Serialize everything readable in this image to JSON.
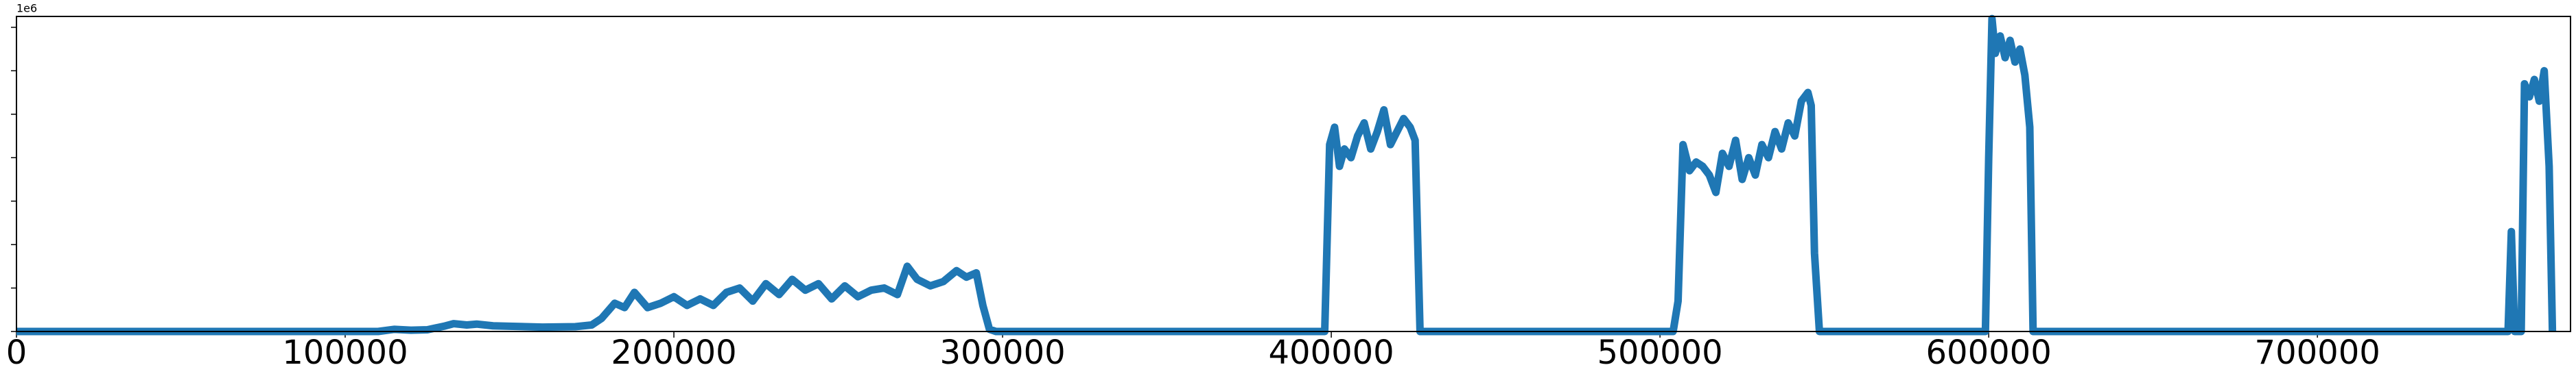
{
  "chart_data": {
    "type": "line",
    "y_offset_label": "1e6",
    "x": [
      0,
      110000,
      115000,
      120000,
      125000,
      130000,
      133000,
      137000,
      140000,
      145000,
      150000,
      160000,
      170000,
      175000,
      178000,
      182000,
      185000,
      188000,
      192000,
      196000,
      200000,
      204000,
      208000,
      212000,
      216000,
      220000,
      224000,
      228000,
      232000,
      236000,
      240000,
      244000,
      248000,
      252000,
      256000,
      260000,
      264000,
      268000,
      271000,
      274000,
      278000,
      282000,
      286000,
      289000,
      292000,
      294000,
      296000,
      298000,
      398000,
      399500,
      401000,
      402500,
      404000,
      406000,
      408000,
      410000,
      412000,
      414000,
      416000,
      418000,
      420000,
      422000,
      424000,
      425500,
      427000,
      504000,
      505500,
      507000,
      509000,
      511000,
      513000,
      515000,
      517000,
      519000,
      521000,
      523000,
      525000,
      527000,
      529000,
      531000,
      533000,
      535000,
      537000,
      539000,
      541000,
      543000,
      545000,
      546000,
      547000,
      548500,
      599000,
      600000,
      601000,
      602000,
      603500,
      605000,
      606500,
      608000,
      609500,
      611000,
      612500,
      613500,
      757000,
      758000,
      759000,
      760000,
      762000,
      763000,
      764500,
      766000,
      767500,
      769000,
      770500,
      771500
    ],
    "series": [
      {
        "color": "#1f77b4",
        "values": [
          0,
          0,
          50000,
          30000,
          40000,
          120000,
          180000,
          150000,
          170000,
          130000,
          120000,
          100000,
          110000,
          150000,
          300000,
          650000,
          550000,
          900000,
          550000,
          650000,
          800000,
          600000,
          750000,
          600000,
          900000,
          1000000,
          700000,
          1100000,
          850000,
          1200000,
          950000,
          1100000,
          750000,
          1050000,
          800000,
          950000,
          1000000,
          850000,
          1500000,
          1200000,
          1050000,
          1150000,
          1400000,
          1250000,
          1350000,
          600000,
          50000,
          0,
          0,
          4300000,
          4700000,
          3800000,
          4200000,
          4000000,
          4500000,
          4800000,
          4200000,
          4600000,
          5100000,
          4300000,
          4600000,
          4900000,
          4700000,
          4400000,
          0,
          0,
          700000,
          4300000,
          3700000,
          3900000,
          3800000,
          3600000,
          3200000,
          4100000,
          3800000,
          4400000,
          3500000,
          4000000,
          3600000,
          4300000,
          4000000,
          4600000,
          4200000,
          4800000,
          4500000,
          5300000,
          5500000,
          5200000,
          1800000,
          0,
          0,
          4000000,
          7200000,
          6400000,
          6800000,
          6300000,
          6700000,
          6200000,
          6500000,
          5900000,
          4700000,
          0,
          0,
          0,
          2300000,
          0,
          0,
          5700000,
          5400000,
          5800000,
          5300000,
          6000000,
          3800000,
          0
        ]
      }
    ],
    "xlim": [
      0,
      777000
    ],
    "xticks": [
      0,
      100000,
      200000,
      300000,
      400000,
      500000,
      600000,
      700000
    ],
    "ylim": [
      0,
      7250000
    ],
    "yticks": [
      0,
      1000000,
      2000000,
      3000000,
      4000000,
      5000000,
      6000000,
      7000000
    ]
  }
}
